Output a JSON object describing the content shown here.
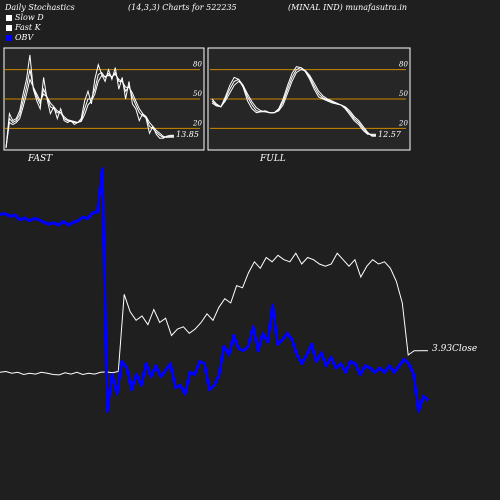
{
  "header": {
    "left": "Daily Stochastics",
    "mid": "(14,3,3) Charts for 522235",
    "right": "(MINAL IND) munafasutra.in"
  },
  "legend": [
    {
      "label": "Slow  D",
      "color": "#ffffff"
    },
    {
      "label": "Fast K",
      "color": "#ffffff"
    },
    {
      "label": "OBV",
      "color": "#0000ff"
    }
  ],
  "colors": {
    "background": "#1f1f1f",
    "panel": "#262626",
    "guide": "#cc8800",
    "price": "#ffffff",
    "obv": "#0000ff"
  },
  "chart_data": [
    {
      "type": "line",
      "title": "FAST",
      "ylim": [
        0,
        100
      ],
      "yticks": [
        "80",
        "50",
        "20"
      ],
      "guides": [
        80,
        50,
        20
      ],
      "last_value_label": "13.85",
      "series": [
        {
          "values": [
            0,
            35,
            28,
            30,
            38,
            55,
            70,
            95,
            60,
            48,
            40,
            72,
            50,
            35,
            42,
            30,
            40,
            28,
            26,
            28,
            24,
            26,
            30,
            48,
            58,
            45,
            70,
            85,
            75,
            68,
            80,
            70,
            82,
            60,
            72,
            50,
            68,
            45,
            40,
            28,
            35,
            30,
            15,
            22,
            14,
            10,
            10,
            12,
            13
          ]
        },
        {
          "values": [
            0,
            30,
            26,
            28,
            34,
            48,
            62,
            80,
            62,
            52,
            45,
            60,
            52,
            42,
            40,
            36,
            36,
            30,
            28,
            27,
            26,
            26,
            28,
            40,
            50,
            50,
            60,
            75,
            77,
            72,
            76,
            72,
            77,
            68,
            68,
            58,
            63,
            52,
            44,
            36,
            33,
            31,
            22,
            20,
            16,
            13,
            11,
            11,
            12
          ]
        },
        {
          "values": [
            0,
            26,
            24,
            26,
            30,
            42,
            55,
            70,
            62,
            55,
            48,
            55,
            52,
            46,
            42,
            38,
            36,
            32,
            29,
            28,
            27,
            26,
            27,
            34,
            44,
            48,
            55,
            68,
            74,
            73,
            74,
            73,
            75,
            70,
            68,
            62,
            62,
            56,
            48,
            40,
            35,
            32,
            26,
            22,
            18,
            15,
            12,
            11,
            11
          ]
        }
      ]
    },
    {
      "type": "line",
      "title": "FULL",
      "ylim": [
        0,
        100
      ],
      "yticks": [
        "80",
        "50",
        "20"
      ],
      "guides": [
        80,
        50,
        20
      ],
      "last_value_label": "12.57",
      "series": [
        {
          "values": [
            50,
            45,
            42,
            52,
            64,
            72,
            70,
            62,
            48,
            40,
            36,
            37,
            38,
            36,
            36,
            40,
            50,
            64,
            76,
            83,
            82,
            78,
            70,
            60,
            52,
            50,
            48,
            46,
            45,
            44,
            40,
            34,
            28,
            24,
            18,
            14,
            14
          ]
        },
        {
          "values": [
            48,
            44,
            42,
            50,
            60,
            68,
            70,
            64,
            52,
            44,
            38,
            37,
            37,
            36,
            36,
            39,
            47,
            60,
            72,
            80,
            82,
            79,
            72,
            63,
            55,
            51,
            49,
            47,
            45,
            44,
            41,
            36,
            30,
            26,
            20,
            15,
            13
          ]
        },
        {
          "values": [
            46,
            43,
            42,
            48,
            56,
            64,
            68,
            64,
            55,
            47,
            41,
            38,
            37,
            36,
            36,
            38,
            44,
            56,
            68,
            77,
            80,
            79,
            74,
            66,
            58,
            53,
            50,
            48,
            46,
            44,
            42,
            38,
            32,
            28,
            22,
            16,
            12
          ]
        }
      ]
    },
    {
      "type": "line",
      "series": [
        {
          "name": "Close",
          "last_value_label": "3.93",
          "values": [
            11.0,
            11.2,
            10.8,
            11.0,
            10.5,
            10.8,
            10.6,
            11.0,
            10.8,
            10.5,
            10.4,
            10.9,
            10.6,
            11.0,
            10.5,
            10.8,
            10.6,
            11.0,
            11.1,
            10.9,
            11.2,
            29.0,
            25.0,
            23.0,
            24.0,
            22.0,
            25.5,
            22.5,
            23.5,
            19.5,
            21.0,
            21.5,
            20.0,
            21.0,
            22.5,
            24.5,
            23.0,
            26.0,
            28.0,
            27.0,
            31.0,
            30.5,
            34.0,
            36.5,
            35.0,
            37.5,
            36.5,
            38.0,
            37.0,
            36.5,
            38.5,
            36.0,
            37.5,
            37.0,
            36.0,
            35.5,
            36.0,
            38.5,
            37.0,
            35.5,
            37.0,
            33.0,
            35.5,
            37.0,
            36.0,
            36.5,
            35.0,
            32.0,
            27.0,
            15.0,
            16.0,
            16.0
          ]
        },
        {
          "name": "OBV",
          "values": [
            47.5,
            47.6,
            47.0,
            47.3,
            46.2,
            46.6,
            46.0,
            46.5,
            46.2,
            45.6,
            45.2,
            45.5,
            45.0,
            45.8,
            45.0,
            45.6,
            46.0,
            46.8,
            46.5,
            47.8,
            48.0,
            58.0,
            2.0,
            10.5,
            6.0,
            13.5,
            12.0,
            7.0,
            10.5,
            8.0,
            13.0,
            10.0,
            12.5,
            10.0,
            11.5,
            13.0,
            7.5,
            8.0,
            6.0,
            11.0,
            10.5,
            13.5,
            13.0,
            7.0,
            8.0,
            10.5,
            17.0,
            15.0,
            19.5,
            16.5,
            16.0,
            17.0,
            21.5,
            16.0,
            20.0,
            18.0,
            26.5,
            17.5,
            18.5,
            20.0,
            18.5,
            15.0,
            13.0,
            15.0,
            17.5,
            13.5,
            15.5,
            12.5,
            14.5,
            12.0,
            13.0,
            11.0,
            13.5,
            13.0,
            10.5,
            12.5,
            12.0,
            11.0,
            12.0,
            11.0,
            12.5,
            11.0,
            12.5,
            14.0,
            13.0,
            10.5,
            2.0,
            5.5,
            4.5
          ]
        }
      ]
    }
  ]
}
